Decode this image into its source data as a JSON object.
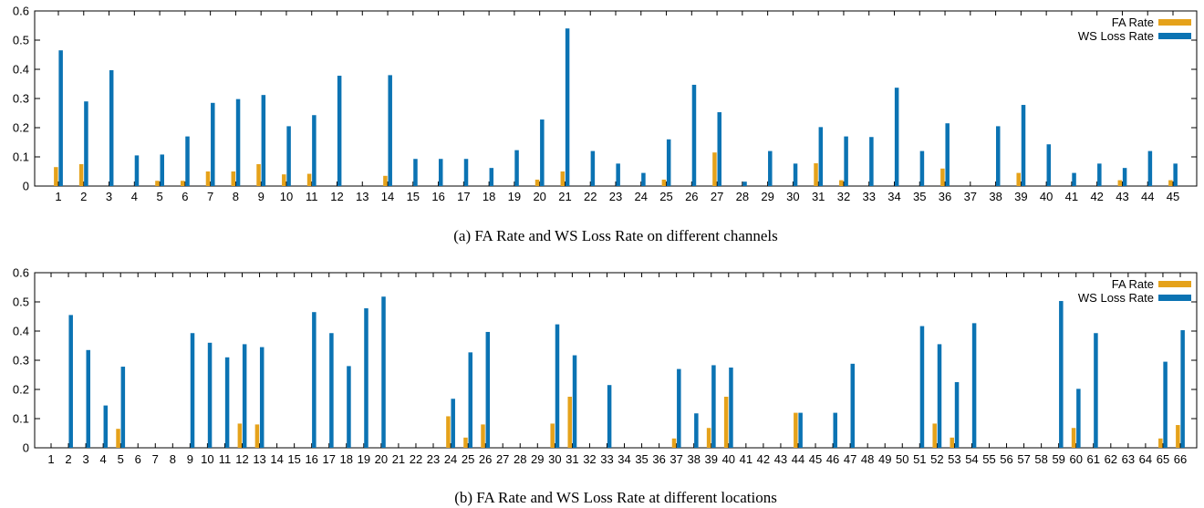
{
  "colors": {
    "fa": "#e5a21b",
    "ws": "#0b73b3"
  },
  "chart_data": [
    {
      "type": "bar",
      "caption": "(a) FA Rate and WS Loss Rate on different channels",
      "ylim": [
        0,
        0.6
      ],
      "yticks": [
        "0",
        "0.1",
        "0.2",
        "0.3",
        "0.4",
        "0.5",
        "0.6"
      ],
      "categories": [
        "1",
        "2",
        "3",
        "4",
        "5",
        "6",
        "7",
        "8",
        "9",
        "10",
        "11",
        "12",
        "13",
        "14",
        "15",
        "16",
        "17",
        "18",
        "19",
        "20",
        "21",
        "22",
        "23",
        "24",
        "25",
        "26",
        "27",
        "28",
        "29",
        "30",
        "31",
        "32",
        "33",
        "34",
        "35",
        "36",
        "37",
        "38",
        "39",
        "40",
        "41",
        "42",
        "43",
        "44",
        "45"
      ],
      "legend_position": "top-right",
      "series": [
        {
          "name": "FA Rate",
          "values": [
            0.065,
            0.075,
            0,
            0,
            0.018,
            0.018,
            0.05,
            0.05,
            0.075,
            0.04,
            0.042,
            0,
            0,
            0.035,
            0,
            0,
            0,
            0,
            0,
            0.022,
            0.05,
            0,
            0,
            0,
            0.022,
            0,
            0.115,
            0,
            0,
            0,
            0.078,
            0.02,
            0,
            0,
            0,
            0.06,
            0,
            0,
            0.045,
            0,
            0,
            0,
            0.02,
            0,
            0.02
          ]
        },
        {
          "name": "WS Loss Rate",
          "values": [
            0.465,
            0.29,
            0.397,
            0.105,
            0.108,
            0.17,
            0.285,
            0.298,
            0.312,
            0.205,
            0.243,
            0.378,
            0,
            0.38,
            0.093,
            0.093,
            0.093,
            0.062,
            0.123,
            0.228,
            0.54,
            0.12,
            0.077,
            0.045,
            0.16,
            0.347,
            0.253,
            0.015,
            0.12,
            0.077,
            0.202,
            0.17,
            0.168,
            0.337,
            0.12,
            0.215,
            0,
            0.205,
            0.278,
            0.143,
            0.045,
            0.077,
            0.062,
            0.12,
            0.077
          ]
        }
      ]
    },
    {
      "type": "bar",
      "caption": "(b) FA Rate and WS Loss Rate at different locations",
      "ylim": [
        0,
        0.6
      ],
      "yticks": [
        "0",
        "0.1",
        "0.2",
        "0.3",
        "0.4",
        "0.5",
        "0.6"
      ],
      "categories": [
        "1",
        "2",
        "3",
        "4",
        "5",
        "6",
        "7",
        "8",
        "9",
        "10",
        "11",
        "12",
        "13",
        "14",
        "15",
        "16",
        "17",
        "18",
        "19",
        "20",
        "21",
        "22",
        "23",
        "24",
        "25",
        "26",
        "27",
        "28",
        "29",
        "30",
        "31",
        "32",
        "33",
        "34",
        "35",
        "36",
        "37",
        "38",
        "39",
        "40",
        "41",
        "42",
        "43",
        "44",
        "45",
        "46",
        "47",
        "48",
        "49",
        "50",
        "51",
        "52",
        "53",
        "54",
        "55",
        "56",
        "57",
        "58",
        "59",
        "60",
        "61",
        "62",
        "63",
        "64",
        "65",
        "66"
      ],
      "legend_position": "top-right",
      "series": [
        {
          "name": "FA Rate",
          "values": [
            0,
            0,
            0,
            0,
            0.065,
            0,
            0,
            0,
            0,
            0,
            0,
            0.083,
            0.08,
            0,
            0,
            0,
            0,
            0,
            0,
            0,
            0,
            0,
            0,
            0.108,
            0.035,
            0.08,
            0,
            0,
            0,
            0.083,
            0.175,
            0,
            0,
            0,
            0,
            0,
            0.032,
            0,
            0.068,
            0.175,
            0,
            0,
            0,
            0.12,
            0,
            0,
            0,
            0,
            0,
            0,
            0,
            0.083,
            0.035,
            0,
            0,
            0,
            0,
            0,
            0,
            0.068,
            0,
            0,
            0,
            0,
            0.032,
            0.078
          ]
        },
        {
          "name": "WS Loss Rate",
          "values": [
            0,
            0.455,
            0.335,
            0.145,
            0.278,
            0,
            0,
            0,
            0.393,
            0.36,
            0.31,
            0.355,
            0.345,
            0,
            0,
            0.465,
            0.393,
            0.28,
            0.478,
            0.518,
            0,
            0,
            0,
            0.168,
            0.327,
            0.397,
            0,
            0,
            0,
            0.423,
            0.317,
            0,
            0.215,
            0,
            0,
            0,
            0.27,
            0.118,
            0.283,
            0.275,
            0,
            0,
            0,
            0.12,
            0,
            0.12,
            0.288,
            0,
            0,
            0,
            0.417,
            0.355,
            0.225,
            0.427,
            0,
            0,
            0,
            0,
            0.503,
            0.202,
            0.393,
            0,
            0,
            0,
            0.295,
            0.403
          ]
        }
      ]
    }
  ]
}
